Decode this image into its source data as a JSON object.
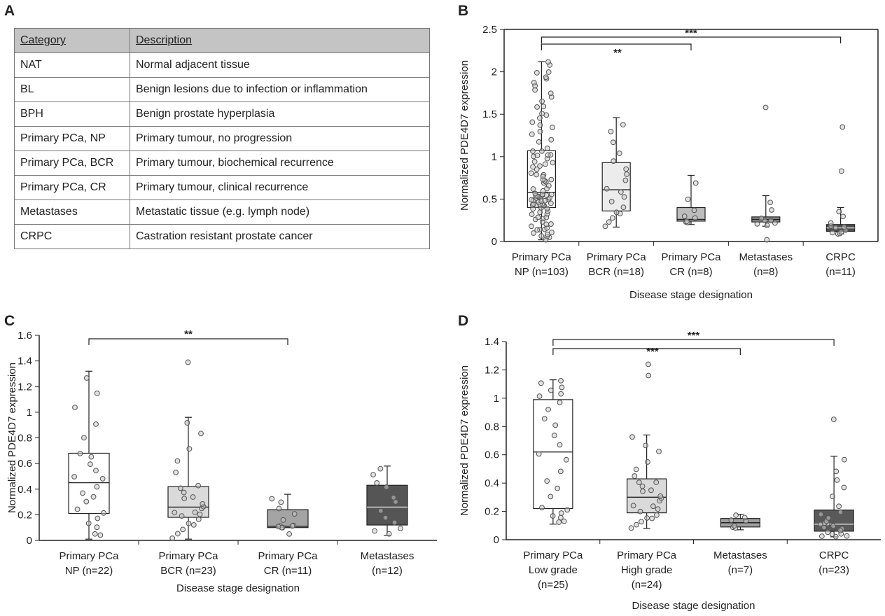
{
  "panels": {
    "a": "A",
    "b": "B",
    "c": "C",
    "d": "D"
  },
  "table": {
    "headers": [
      "Category",
      "Description"
    ],
    "rows": [
      [
        "NAT",
        "Normal adjacent tissue"
      ],
      [
        "BL",
        "Benign lesions due to infection or inflammation"
      ],
      [
        "BPH",
        "Benign prostate hyperplasia"
      ],
      [
        "Primary PCa, NP",
        "Primary tumour, no progression"
      ],
      [
        "Primary PCa, BCR",
        "Primary tumour, biochemical recurrence"
      ],
      [
        "Primary PCa, CR",
        "Primary tumour, clinical recurrence"
      ],
      [
        "Metastases",
        "Metastatic tissue (e.g. lymph node)"
      ],
      [
        "CRPC",
        "Castration resistant prostate cancer"
      ]
    ]
  },
  "chart_data": [
    {
      "panel": "B",
      "type": "box",
      "xlabel": "Disease stage designation",
      "ylabel": "Normalized PDE4D7 expression",
      "ylim": [
        0,
        2.5
      ],
      "yticks": [
        0,
        0.5,
        1,
        1.5,
        2,
        2.5
      ],
      "categories": [
        {
          "line1": "Primary PCa",
          "line2": "NP (n=103)",
          "n": 103,
          "min": 0.02,
          "q1": 0.4,
          "median": 0.58,
          "q3": 1.07,
          "max": 2.12,
          "fill": "#ffffff",
          "outliers": []
        },
        {
          "line1": "Primary PCa",
          "line2": "BCR (n=18)",
          "n": 18,
          "min": 0.17,
          "q1": 0.36,
          "median": 0.61,
          "q3": 0.93,
          "max": 1.46,
          "fill": "#ececec",
          "outliers": []
        },
        {
          "line1": "Primary PCa",
          "line2": "CR (n=8)",
          "n": 8,
          "min": 0.2,
          "q1": 0.24,
          "median": 0.26,
          "q3": 0.4,
          "max": 0.78,
          "fill": "#bdbdbd",
          "outliers": []
        },
        {
          "line1": "Metastases",
          "line2": "(n=8)",
          "n": 8,
          "min": 0.18,
          "q1": 0.23,
          "median": 0.26,
          "q3": 0.29,
          "max": 0.54,
          "fill": "#8e8e8e",
          "outliers": [
            1.58,
            0.02
          ]
        },
        {
          "line1": "CRPC",
          "line2": "(n=11)",
          "n": 11,
          "min": 0.09,
          "q1": 0.12,
          "median": 0.16,
          "q3": 0.2,
          "max": 0.4,
          "fill": "#4f4f4f",
          "outliers": [
            1.35,
            0.83
          ]
        }
      ],
      "brackets": [
        {
          "from": 0,
          "to": 4,
          "label": "***"
        },
        {
          "from": 0,
          "to": 2,
          "label": "**"
        }
      ]
    },
    {
      "panel": "C",
      "type": "box",
      "xlabel": "Disease stage designation",
      "ylabel": "Normalized PDE4D7 expression",
      "ylim": [
        0,
        1.6
      ],
      "yticks": [
        0,
        0.2,
        0.4,
        0.6,
        0.8,
        1,
        1.2,
        1.4,
        1.6
      ],
      "categories": [
        {
          "line1": "Primary PCa",
          "line2": "NP (n=22)",
          "n": 22,
          "min": 0.01,
          "q1": 0.21,
          "median": 0.45,
          "q3": 0.68,
          "max": 1.32,
          "fill": "#ffffff",
          "outliers": []
        },
        {
          "line1": "Primary PCa",
          "line2": "BCR (n=23)",
          "n": 23,
          "min": 0.01,
          "q1": 0.18,
          "median": 0.26,
          "q3": 0.42,
          "max": 0.96,
          "fill": "#dadada",
          "outliers": [
            1.39
          ]
        },
        {
          "line1": "Primary PCa",
          "line2": "CR (n=11)",
          "n": 11,
          "min": 0.1,
          "q1": 0.1,
          "median": 0.11,
          "q3": 0.24,
          "max": 0.36,
          "fill": "#a4a4a4",
          "outliers": [
            0.05
          ]
        },
        {
          "line1": "Metastases",
          "line2": "(n=12)",
          "n": 12,
          "min": 0.04,
          "q1": 0.12,
          "median": 0.26,
          "q3": 0.43,
          "max": 0.58,
          "fill": "#555555",
          "outliers": []
        }
      ],
      "brackets": [
        {
          "from": 0,
          "to": 2,
          "label": "**"
        }
      ]
    },
    {
      "panel": "D",
      "type": "box",
      "xlabel": "Disease stage designation",
      "ylabel": "Normalized PDE4D7 expression",
      "ylim": [
        0,
        1.4
      ],
      "yticks": [
        0,
        0.2,
        0.4,
        0.6,
        0.8,
        1,
        1.2,
        1.4
      ],
      "categories": [
        {
          "line1": "Primary PCa",
          "line2": "Low grade",
          "line3": "(n=25)",
          "n": 25,
          "min": 0.11,
          "q1": 0.22,
          "median": 0.62,
          "q3": 0.99,
          "max": 1.13,
          "fill": "#ffffff",
          "outliers": []
        },
        {
          "line1": "Primary PCa",
          "line2": "High grade",
          "line3": "(n=24)",
          "n": 24,
          "min": 0.08,
          "q1": 0.19,
          "median": 0.3,
          "q3": 0.43,
          "max": 0.74,
          "fill": "#dadada",
          "outliers": [
            1.16,
            1.24
          ]
        },
        {
          "line1": "Metastases",
          "line2": "(n=7)",
          "line3": "",
          "n": 7,
          "min": 0.07,
          "q1": 0.09,
          "median": 0.12,
          "q3": 0.15,
          "max": 0.18,
          "fill": "#9e9e9e",
          "outliers": []
        },
        {
          "line1": "CRPC",
          "line2": "(n=23)",
          "line3": "",
          "n": 23,
          "min": 0.02,
          "q1": 0.06,
          "median": 0.11,
          "q3": 0.21,
          "max": 0.59,
          "fill": "#595959",
          "outliers": [
            0.85
          ]
        }
      ],
      "brackets": [
        {
          "from": 0,
          "to": 3,
          "label": "***"
        },
        {
          "from": 0,
          "to": 2,
          "label": "***"
        }
      ]
    }
  ]
}
